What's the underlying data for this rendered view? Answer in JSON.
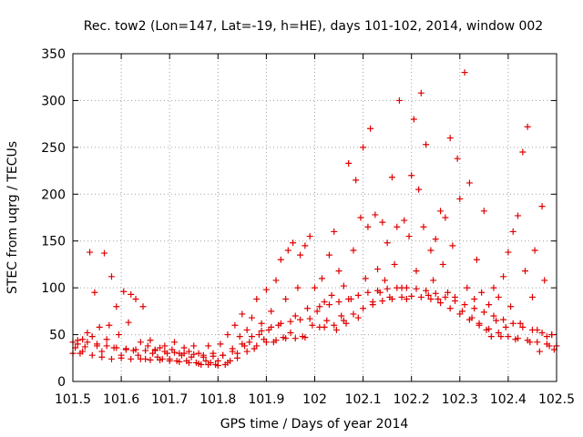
{
  "chart_data": {
    "type": "scatter",
    "title": "Rec. tow2 (Lon=147, Lat=-19, h=HE), days 101-102, 2014, window 002",
    "xlabel": "GPS time / Days of year 2014",
    "ylabel": "STEC from uqrg / TECUs",
    "xlim": [
      101.5,
      102.5
    ],
    "ylim": [
      0,
      350
    ],
    "xticks": [
      101.5,
      101.6,
      101.7,
      101.8,
      101.9,
      102,
      102.1,
      102.2,
      102.3,
      102.4,
      102.5
    ],
    "xtick_labels": [
      "101.5",
      "101.6",
      "101.7",
      "101.8",
      "101.9",
      "102",
      "102.1",
      "102.2",
      "102.3",
      "102.4",
      "102.5"
    ],
    "yticks": [
      0,
      50,
      100,
      150,
      200,
      250,
      300,
      350
    ],
    "ytick_labels": [
      "0",
      "50",
      "100",
      "150",
      "200",
      "250",
      "300",
      "350"
    ],
    "grid": true,
    "marker": "+",
    "color": "#e00000",
    "series": [
      {
        "name": "STEC",
        "points": [
          [
            101.5,
            42
          ],
          [
            101.505,
            36
          ],
          [
            101.51,
            44
          ],
          [
            101.515,
            30
          ],
          [
            101.52,
            45
          ],
          [
            101.525,
            37
          ],
          [
            101.53,
            52
          ],
          [
            101.535,
            138
          ],
          [
            101.54,
            48
          ],
          [
            101.545,
            95
          ],
          [
            101.55,
            38
          ],
          [
            101.555,
            58
          ],
          [
            101.56,
            32
          ],
          [
            101.565,
            137
          ],
          [
            101.57,
            45
          ],
          [
            101.575,
            60
          ],
          [
            101.58,
            112
          ],
          [
            101.585,
            36
          ],
          [
            101.59,
            80
          ],
          [
            101.595,
            50
          ],
          [
            101.6,
            28
          ],
          [
            101.605,
            96
          ],
          [
            101.61,
            34
          ],
          [
            101.615,
            63
          ],
          [
            101.62,
            93
          ],
          [
            101.625,
            33
          ],
          [
            101.63,
            88
          ],
          [
            101.635,
            28
          ],
          [
            101.64,
            42
          ],
          [
            101.645,
            80
          ],
          [
            101.65,
            24
          ],
          [
            101.655,
            38
          ],
          [
            101.66,
            44
          ],
          [
            101.665,
            30
          ],
          [
            101.67,
            34
          ],
          [
            101.675,
            26
          ],
          [
            101.68,
            36
          ],
          [
            101.685,
            24
          ],
          [
            101.69,
            38
          ],
          [
            101.695,
            30
          ],
          [
            101.7,
            24
          ],
          [
            101.705,
            34
          ],
          [
            101.71,
            42
          ],
          [
            101.715,
            22
          ],
          [
            101.72,
            30
          ],
          [
            101.725,
            28
          ],
          [
            101.73,
            36
          ],
          [
            101.735,
            22
          ],
          [
            101.74,
            32
          ],
          [
            101.745,
            26
          ],
          [
            101.75,
            38
          ],
          [
            101.755,
            20
          ],
          [
            101.76,
            30
          ],
          [
            101.765,
            18
          ],
          [
            101.77,
            26
          ],
          [
            101.775,
            22
          ],
          [
            101.78,
            38
          ],
          [
            101.785,
            20
          ],
          [
            101.79,
            30
          ],
          [
            101.795,
            18
          ],
          [
            101.8,
            22
          ],
          [
            101.805,
            40
          ],
          [
            101.81,
            28
          ],
          [
            101.815,
            18
          ],
          [
            101.82,
            50
          ],
          [
            101.825,
            22
          ],
          [
            101.83,
            35
          ],
          [
            101.835,
            60
          ],
          [
            101.84,
            30
          ],
          [
            101.845,
            48
          ],
          [
            101.85,
            72
          ],
          [
            101.855,
            38
          ],
          [
            101.86,
            55
          ],
          [
            101.865,
            42
          ],
          [
            101.87,
            68
          ],
          [
            101.875,
            35
          ],
          [
            101.88,
            88
          ],
          [
            101.885,
            50
          ],
          [
            101.89,
            62
          ],
          [
            101.895,
            45
          ],
          [
            101.9,
            98
          ],
          [
            101.905,
            55
          ],
          [
            101.91,
            75
          ],
          [
            101.915,
            42
          ],
          [
            101.92,
            108
          ],
          [
            101.925,
            60
          ],
          [
            101.93,
            130
          ],
          [
            101.935,
            47
          ],
          [
            101.94,
            88
          ],
          [
            101.945,
            140
          ],
          [
            101.95,
            52
          ],
          [
            101.955,
            148
          ],
          [
            101.96,
            70
          ],
          [
            101.965,
            100
          ],
          [
            101.97,
            135
          ],
          [
            101.975,
            48
          ],
          [
            101.98,
            145
          ],
          [
            101.985,
            78
          ],
          [
            101.99,
            155
          ],
          [
            101.995,
            60
          ],
          [
            102,
            100
          ],
          [
            102.005,
            75
          ],
          [
            102.01,
            58
          ],
          [
            102.015,
            110
          ],
          [
            102.02,
            85
          ],
          [
            102.025,
            65
          ],
          [
            102.03,
            135
          ],
          [
            102.035,
            92
          ],
          [
            102.04,
            160
          ],
          [
            102.045,
            55
          ],
          [
            102.05,
            118
          ],
          [
            102.055,
            70
          ],
          [
            102.06,
            102
          ],
          [
            102.065,
            62
          ],
          [
            102.07,
            233
          ],
          [
            102.075,
            88
          ],
          [
            102.08,
            140
          ],
          [
            102.085,
            215
          ],
          [
            102.09,
            68
          ],
          [
            102.095,
            175
          ],
          [
            102.1,
            250
          ],
          [
            102.105,
            110
          ],
          [
            102.11,
            165
          ],
          [
            102.115,
            270
          ],
          [
            102.12,
            85
          ],
          [
            102.125,
            178
          ],
          [
            102.13,
            120
          ],
          [
            102.135,
            95
          ],
          [
            102.14,
            170
          ],
          [
            102.145,
            108
          ],
          [
            102.15,
            148
          ],
          [
            102.155,
            90
          ],
          [
            102.16,
            218
          ],
          [
            102.165,
            125
          ],
          [
            102.17,
            165
          ],
          [
            102.175,
            300
          ],
          [
            102.18,
            100
          ],
          [
            102.185,
            172
          ],
          [
            102.19,
            88
          ],
          [
            102.195,
            155
          ],
          [
            102.2,
            220
          ],
          [
            102.205,
            280
          ],
          [
            102.21,
            118
          ],
          [
            102.215,
            205
          ],
          [
            102.22,
            308
          ],
          [
            102.225,
            165
          ],
          [
            102.23,
            253
          ],
          [
            102.235,
            92
          ],
          [
            102.24,
            140
          ],
          [
            102.245,
            108
          ],
          [
            102.25,
            152
          ],
          [
            102.255,
            88
          ],
          [
            102.26,
            182
          ],
          [
            102.265,
            125
          ],
          [
            102.27,
            175
          ],
          [
            102.275,
            95
          ],
          [
            102.28,
            260
          ],
          [
            102.285,
            145
          ],
          [
            102.29,
            90
          ],
          [
            102.295,
            238
          ],
          [
            102.3,
            195
          ],
          [
            102.305,
            75
          ],
          [
            102.31,
            330
          ],
          [
            102.315,
            100
          ],
          [
            102.32,
            212
          ],
          [
            102.325,
            68
          ],
          [
            102.33,
            88
          ],
          [
            102.335,
            130
          ],
          [
            102.34,
            62
          ],
          [
            102.345,
            95
          ],
          [
            102.35,
            182
          ],
          [
            102.355,
            55
          ],
          [
            102.36,
            82
          ],
          [
            102.365,
            48
          ],
          [
            102.37,
            100
          ],
          [
            102.375,
            65
          ],
          [
            102.38,
            90
          ],
          [
            102.385,
            48
          ],
          [
            102.39,
            112
          ],
          [
            102.395,
            58
          ],
          [
            102.4,
            138
          ],
          [
            102.405,
            80
          ],
          [
            102.41,
            160
          ],
          [
            102.415,
            45
          ],
          [
            102.42,
            177
          ],
          [
            102.425,
            62
          ],
          [
            102.43,
            245
          ],
          [
            102.435,
            118
          ],
          [
            102.44,
            272
          ],
          [
            102.445,
            42
          ],
          [
            102.45,
            90
          ],
          [
            102.455,
            140
          ],
          [
            102.46,
            55
          ],
          [
            102.465,
            32
          ],
          [
            102.47,
            187
          ],
          [
            102.475,
            108
          ],
          [
            102.48,
            48
          ],
          [
            102.485,
            38
          ],
          [
            102.49,
            50
          ],
          [
            102.495,
            34
          ],
          [
            101.5,
            30
          ],
          [
            101.52,
            32
          ],
          [
            101.54,
            28
          ],
          [
            101.56,
            26
          ],
          [
            101.58,
            24
          ],
          [
            101.6,
            25
          ],
          [
            101.62,
            24
          ],
          [
            101.64,
            24
          ],
          [
            101.66,
            23
          ],
          [
            101.68,
            23
          ],
          [
            101.7,
            22
          ],
          [
            101.72,
            21
          ],
          [
            101.74,
            20
          ],
          [
            101.76,
            19
          ],
          [
            101.78,
            18
          ],
          [
            101.8,
            17
          ],
          [
            101.82,
            20
          ],
          [
            101.84,
            25
          ],
          [
            101.86,
            32
          ],
          [
            101.88,
            38
          ],
          [
            101.9,
            42
          ],
          [
            101.92,
            44
          ],
          [
            101.94,
            46
          ],
          [
            101.96,
            46
          ],
          [
            101.98,
            47
          ],
          [
            101.51,
            40
          ],
          [
            101.53,
            42
          ],
          [
            101.55,
            40
          ],
          [
            101.57,
            38
          ],
          [
            101.59,
            36
          ],
          [
            101.61,
            35
          ],
          [
            101.63,
            34
          ],
          [
            101.65,
            33
          ],
          [
            101.67,
            33
          ],
          [
            101.69,
            32
          ],
          [
            101.71,
            31
          ],
          [
            101.73,
            30
          ],
          [
            101.75,
            29
          ],
          [
            101.77,
            28
          ],
          [
            101.79,
            27
          ],
          [
            101.81,
            28
          ],
          [
            101.83,
            32
          ],
          [
            101.85,
            40
          ],
          [
            101.87,
            48
          ],
          [
            101.89,
            54
          ],
          [
            101.91,
            58
          ],
          [
            101.93,
            62
          ],
          [
            101.95,
            64
          ],
          [
            101.97,
            66
          ],
          [
            101.99,
            67
          ],
          [
            102.02,
            58
          ],
          [
            102.04,
            60
          ],
          [
            102.06,
            65
          ],
          [
            102.08,
            72
          ],
          [
            102.1,
            78
          ],
          [
            102.12,
            82
          ],
          [
            102.14,
            86
          ],
          [
            102.16,
            88
          ],
          [
            102.18,
            90
          ],
          [
            102.2,
            91
          ],
          [
            102.22,
            90
          ],
          [
            102.24,
            88
          ],
          [
            102.26,
            84
          ],
          [
            102.28,
            78
          ],
          [
            102.3,
            72
          ],
          [
            102.32,
            66
          ],
          [
            102.34,
            60
          ],
          [
            102.36,
            56
          ],
          [
            102.38,
            52
          ],
          [
            102.4,
            48
          ],
          [
            102.42,
            46
          ],
          [
            102.44,
            44
          ],
          [
            102.46,
            42
          ],
          [
            102.48,
            40
          ],
          [
            102.5,
            38
          ],
          [
            102.01,
            80
          ],
          [
            102.03,
            82
          ],
          [
            102.05,
            85
          ],
          [
            102.07,
            88
          ],
          [
            102.09,
            92
          ],
          [
            102.11,
            95
          ],
          [
            102.13,
            97
          ],
          [
            102.15,
            99
          ],
          [
            102.17,
            100
          ],
          [
            102.19,
            100
          ],
          [
            102.21,
            99
          ],
          [
            102.23,
            97
          ],
          [
            102.25,
            94
          ],
          [
            102.27,
            90
          ],
          [
            102.29,
            86
          ],
          [
            102.31,
            82
          ],
          [
            102.33,
            78
          ],
          [
            102.35,
            74
          ],
          [
            102.37,
            70
          ],
          [
            102.39,
            66
          ],
          [
            102.41,
            62
          ],
          [
            102.43,
            58
          ],
          [
            102.45,
            55
          ],
          [
            102.47,
            52
          ],
          [
            102.49,
            50
          ]
        ]
      }
    ]
  }
}
